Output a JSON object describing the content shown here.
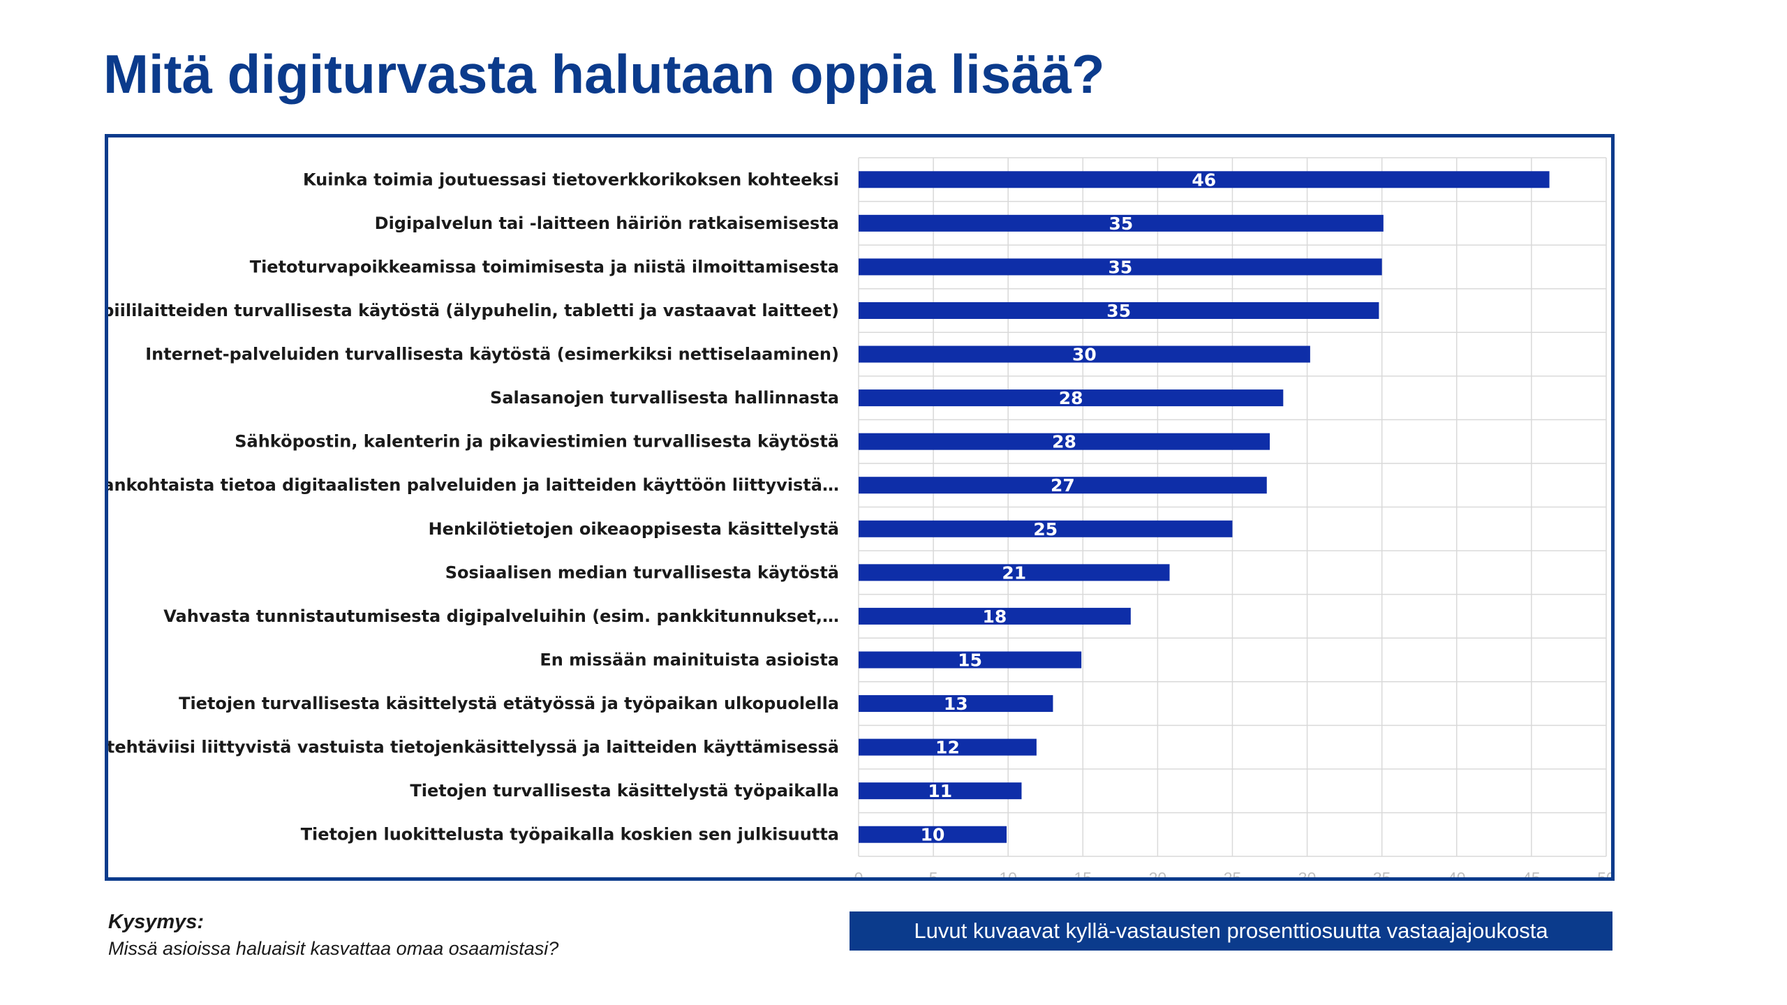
{
  "slide": {
    "title": "Mitä digiturvasta halutaan oppia lisää?",
    "question_heading": "Kysymys:",
    "question_text": "Missä asioissa haluaisit kasvattaa omaa osaamistasi?",
    "note": "Luvut kuvaavat kyllä-vastausten prosenttiosuutta vastaajajoukosta"
  },
  "colors": {
    "title": "#0b3b8c",
    "bar": "#0e2ea8",
    "frame": "#0b3b8c",
    "note_background": "#0b3b8c",
    "grid": "#d9d9d9",
    "tick_text": "#bfbfbf"
  },
  "chart_data": {
    "type": "bar",
    "orientation": "horizontal",
    "categories": [
      "Kuinka toimia joutuessasi tietoverkkorikoksen kohteeksi",
      "Digipalvelun tai -laitteen häiriön ratkaisemisesta",
      "Tietoturvapoikkeamissa toimimisesta ja niistä ilmoittamisesta",
      "Mobiililaitteiden turvallisesta käytöstä (älypuhelin, tabletti ja vastaavat laitteet)",
      "Internet-palveluiden turvallisesta käytöstä (esimerkiksi nettiselaaminen)",
      "Salasanojen turvallisesta hallinnasta",
      "Sähköpostin, kalenterin ja pikaviestimien turvallisesta käytöstä",
      "Ajankohtaista tietoa digitaalisten palveluiden ja laitteiden käyttöön liittyvistä…",
      "Henkilötietojen oikeaoppisesta käsittelystä",
      "Sosiaalisen median turvallisesta käytöstä",
      "Vahvasta tunnistautumisesta digipalveluihin (esim. pankkitunnukset,…",
      "En missään mainituista asioista",
      "Tietojen turvallisesta käsittelystä etätyössä ja työpaikan ulkopuolella",
      "Työtehtäviisi liittyvistä vastuista tietojenkäsittelyssä ja laitteiden käyttämisessä",
      "Tietojen turvallisesta käsittelystä työpaikalla",
      "Tietojen luokittelusta työpaikalla koskien sen julkisuutta"
    ],
    "values": [
      46.2,
      35.1,
      35.0,
      34.8,
      30.2,
      28.4,
      27.5,
      27.3,
      25.0,
      20.8,
      18.2,
      14.9,
      13.0,
      11.9,
      10.9,
      9.9
    ],
    "value_labels": [
      "46",
      "35",
      "35",
      "35",
      "30",
      "28",
      "28",
      "27",
      "25",
      "21",
      "18",
      "15",
      "13",
      "12",
      "11",
      "10"
    ],
    "xlim": [
      0,
      50
    ],
    "xticks": [
      0,
      5,
      10,
      15,
      20,
      25,
      30,
      35,
      40,
      45,
      50
    ],
    "grid": true,
    "legend": "none"
  }
}
